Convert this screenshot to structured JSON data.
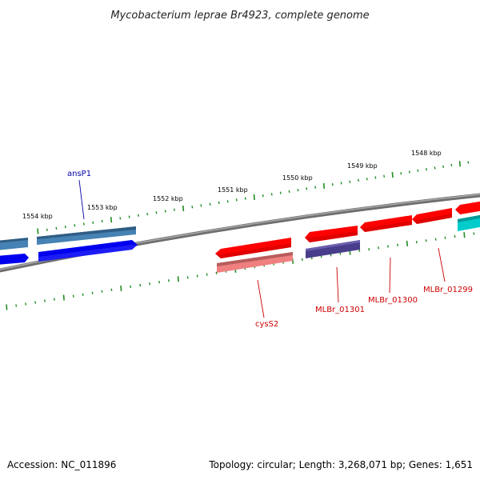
{
  "title": "Mycobacterium leprae Br4923, complete genome",
  "footer": {
    "accession": "Accession: NC_011896",
    "summary": "Topology: circular; Length: 3,268,071 bp; Genes: 1,651"
  },
  "ruler_labels": [
    "1554 kbp",
    "1553 kbp",
    "1552 kbp",
    "1551 kbp",
    "1550 kbp",
    "1549 kbp",
    "1548 kbp"
  ],
  "gene_labels": [
    {
      "text": "ansP1",
      "color": "#0000aa"
    },
    {
      "text": "cysS2",
      "color": "#cc0000"
    },
    {
      "text": "MLBr_01301",
      "color": "#cc0000"
    },
    {
      "text": "MLBr_01300",
      "color": "#cc0000"
    },
    {
      "text": "MLBr_01299",
      "color": "#cc0000"
    }
  ],
  "colors": {
    "backbone": "#808080",
    "tick": "#228b22",
    "forward_cds": "#ff0000",
    "forward_gene": "#0000ee",
    "reverse_gene": "#f08080",
    "dark_gene": "#483d8b",
    "steel_gene": "#4682b4",
    "cyan_gene": "#00cccc"
  }
}
